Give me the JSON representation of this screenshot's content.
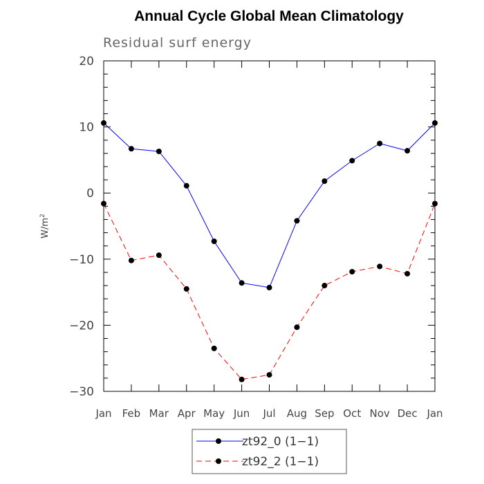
{
  "chart_data": {
    "type": "line",
    "title": "Annual Cycle Global Mean Climatology",
    "subtitle": "Residual surf energy",
    "xlabel": "",
    "ylabel": "W/m",
    "ylabel_superscript": "2",
    "categories": [
      "Jan",
      "Feb",
      "Mar",
      "Apr",
      "May",
      "Jun",
      "Jul",
      "Aug",
      "Sep",
      "Oct",
      "Nov",
      "Dec",
      "Jan"
    ],
    "ylim": [
      -30,
      20
    ],
    "yticks": [
      20,
      10,
      0,
      -10,
      -20,
      -30
    ],
    "ytick_labels": [
      "20",
      "10",
      "0",
      "−10",
      "−20",
      "−30"
    ],
    "grid": false,
    "legend_position": "bottom-center",
    "series": [
      {
        "name": "zt92_0 (1−1)",
        "color": "#0000ff",
        "dash": "solid",
        "values": [
          10.6,
          6.7,
          6.3,
          1.1,
          -7.3,
          -13.6,
          -14.3,
          -4.2,
          1.8,
          4.9,
          7.5,
          6.4,
          10.6
        ]
      },
      {
        "name": "zt92_2 (1−1)",
        "color": "#ff0000",
        "dash": "dashed",
        "values": [
          -1.6,
          -10.2,
          -9.4,
          -14.5,
          -23.5,
          -28.2,
          -27.5,
          -20.3,
          -14.0,
          -11.9,
          -11.1,
          -12.2,
          -1.6
        ]
      }
    ]
  }
}
